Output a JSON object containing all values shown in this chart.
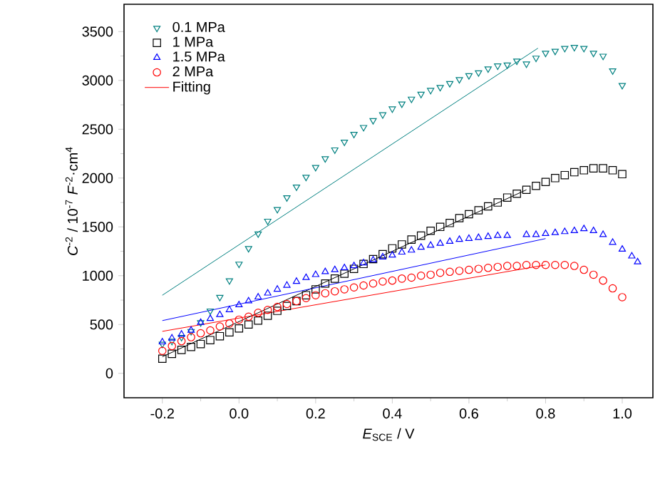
{
  "chart_data": {
    "type": "scatter",
    "xlabel": "*E*$_{SCE}$ / V",
    "ylabel": "*C*$^{-2}$ / 10$^{-7}$ *F*$^{-2}$·cm$^{4}$",
    "xlim": [
      -0.3,
      1.08
    ],
    "ylim": [
      -250,
      3780
    ],
    "xticks": [
      {
        "value": -0.2,
        "label": "-0.2"
      },
      {
        "value": 0,
        "label": "0.0"
      },
      {
        "value": 0.2,
        "label": "0.2"
      },
      {
        "value": 0.4,
        "label": "0.4"
      },
      {
        "value": 0.6,
        "label": "0.6"
      },
      {
        "value": 0.8,
        "label": "0.8"
      },
      {
        "value": 1.0,
        "label": "1.0"
      }
    ],
    "yticks": [
      0,
      500,
      1000,
      1500,
      2000,
      2500,
      3000,
      3500
    ],
    "legend": "top left",
    "grid": false,
    "series": [
      {
        "name": "0.1 MPa",
        "color": "#008080",
        "marker": "triangle-down",
        "x": [
          -0.2,
          -0.175,
          -0.15,
          -0.125,
          -0.1,
          -0.075,
          -0.05,
          -0.025,
          0,
          0.025,
          0.05,
          0.075,
          0.1,
          0.125,
          0.15,
          0.175,
          0.2,
          0.225,
          0.25,
          0.275,
          0.3,
          0.325,
          0.35,
          0.375,
          0.4,
          0.425,
          0.45,
          0.475,
          0.5,
          0.525,
          0.55,
          0.575,
          0.6,
          0.625,
          0.65,
          0.675,
          0.7,
          0.725,
          0.75,
          0.775,
          0.8,
          0.825,
          0.85,
          0.875,
          0.9,
          0.925,
          0.95,
          0.975,
          1.0
        ],
        "values": [
          300,
          330,
          370,
          430,
          520,
          640,
          780,
          950,
          1120,
          1280,
          1430,
          1560,
          1680,
          1800,
          1910,
          2010,
          2110,
          2200,
          2290,
          2370,
          2450,
          2520,
          2590,
          2650,
          2710,
          2760,
          2810,
          2860,
          2900,
          2930,
          2970,
          3010,
          3050,
          3080,
          3120,
          3150,
          3160,
          3200,
          3170,
          3230,
          3280,
          3300,
          3330,
          3340,
          3330,
          3280,
          3250,
          3100,
          2950
        ]
      },
      {
        "name": "1 MPa",
        "color": "#000000",
        "marker": "square",
        "x": [
          -0.2,
          -0.175,
          -0.15,
          -0.125,
          -0.1,
          -0.075,
          -0.05,
          -0.025,
          0,
          0.025,
          0.05,
          0.075,
          0.1,
          0.125,
          0.15,
          0.175,
          0.2,
          0.225,
          0.25,
          0.275,
          0.3,
          0.325,
          0.35,
          0.375,
          0.4,
          0.425,
          0.45,
          0.475,
          0.5,
          0.525,
          0.55,
          0.575,
          0.6,
          0.625,
          0.65,
          0.675,
          0.7,
          0.725,
          0.75,
          0.775,
          0.8,
          0.825,
          0.85,
          0.875,
          0.9,
          0.925,
          0.95,
          0.975,
          1.0
        ],
        "values": [
          150,
          200,
          240,
          270,
          300,
          340,
          380,
          420,
          460,
          500,
          540,
          590,
          640,
          690,
          740,
          800,
          860,
          920,
          970,
          1020,
          1070,
          1120,
          1170,
          1220,
          1280,
          1320,
          1370,
          1410,
          1460,
          1500,
          1540,
          1590,
          1630,
          1670,
          1710,
          1750,
          1800,
          1840,
          1880,
          1920,
          1960,
          2000,
          2030,
          2060,
          2080,
          2100,
          2100,
          2080,
          2040
        ]
      },
      {
        "name": "1.5 MPa",
        "color": "#0000ff",
        "marker": "triangle",
        "x": [
          -0.2,
          -0.175,
          -0.15,
          -0.125,
          -0.1,
          -0.075,
          -0.05,
          -0.025,
          0,
          0.025,
          0.05,
          0.075,
          0.1,
          0.125,
          0.15,
          0.175,
          0.2,
          0.225,
          0.25,
          0.275,
          0.3,
          0.325,
          0.35,
          0.375,
          0.4,
          0.425,
          0.45,
          0.475,
          0.5,
          0.525,
          0.55,
          0.575,
          0.6,
          0.625,
          0.65,
          0.675,
          0.7,
          0.75,
          0.775,
          0.8,
          0.825,
          0.85,
          0.875,
          0.9,
          0.925,
          0.95,
          0.975,
          1.0,
          1.025,
          1.04
        ],
        "values": [
          320,
          360,
          400,
          440,
          520,
          560,
          600,
          650,
          700,
          740,
          780,
          820,
          860,
          900,
          940,
          980,
          1010,
          1040,
          1060,
          1080,
          1100,
          1130,
          1160,
          1190,
          1210,
          1240,
          1260,
          1290,
          1310,
          1330,
          1350,
          1370,
          1380,
          1390,
          1400,
          1410,
          1410,
          1420,
          1420,
          1430,
          1440,
          1450,
          1460,
          1480,
          1460,
          1420,
          1340,
          1270,
          1200,
          1140
        ]
      },
      {
        "name": "2 MPa",
        "color": "#ff0000",
        "marker": "circle",
        "x": [
          -0.2,
          -0.175,
          -0.15,
          -0.125,
          -0.1,
          -0.075,
          -0.05,
          -0.025,
          0,
          0.025,
          0.05,
          0.075,
          0.1,
          0.125,
          0.15,
          0.175,
          0.2,
          0.225,
          0.25,
          0.275,
          0.3,
          0.325,
          0.35,
          0.375,
          0.4,
          0.425,
          0.45,
          0.475,
          0.5,
          0.525,
          0.55,
          0.575,
          0.6,
          0.625,
          0.65,
          0.675,
          0.7,
          0.725,
          0.75,
          0.775,
          0.8,
          0.825,
          0.85,
          0.875,
          0.9,
          0.925,
          0.95,
          0.975,
          1.0
        ],
        "values": [
          230,
          280,
          330,
          370,
          410,
          440,
          480,
          510,
          550,
          580,
          620,
          650,
          680,
          710,
          740,
          770,
          800,
          820,
          840,
          860,
          880,
          900,
          920,
          940,
          950,
          970,
          980,
          1000,
          1010,
          1030,
          1040,
          1050,
          1060,
          1070,
          1080,
          1090,
          1100,
          1100,
          1110,
          1110,
          1110,
          1110,
          1110,
          1100,
          1060,
          1010,
          950,
          870,
          780
        ]
      },
      {
        "name": "Fitting",
        "type": "line",
        "color": "#ff0000",
        "marker": "none",
        "x": [
          -0.2,
          0.8
        ],
        "values": [
          430,
          1110
        ]
      },
      {
        "type": "line",
        "color": "#008080",
        "marker": "none",
        "x": [
          -0.2,
          0.78
        ],
        "values": [
          800,
          3330
        ]
      },
      {
        "type": "line",
        "color": "#000000",
        "marker": "none",
        "x": [
          -0.2,
          0.75
        ],
        "values": [
          170,
          1880
        ]
      },
      {
        "type": "line",
        "color": "#0000ff",
        "marker": "none",
        "x": [
          -0.2,
          0.8
        ],
        "values": [
          540,
          1380
        ]
      }
    ]
  }
}
